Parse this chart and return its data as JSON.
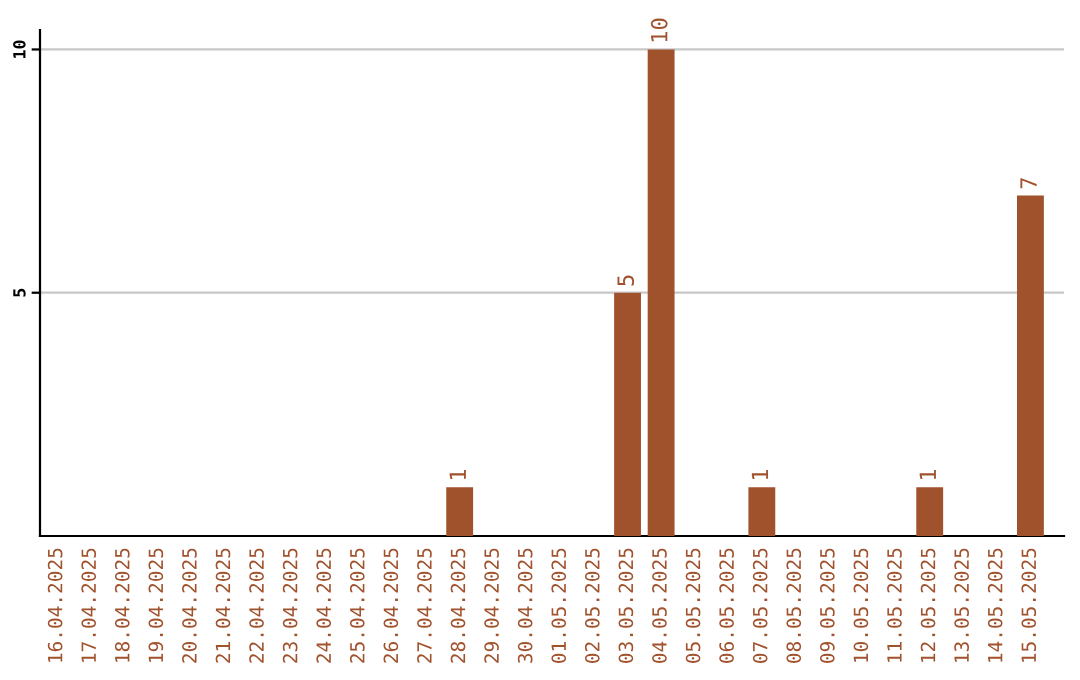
{
  "chart_data": {
    "type": "bar",
    "categories": [
      "16.04.2025",
      "17.04.2025",
      "18.04.2025",
      "19.04.2025",
      "20.04.2025",
      "21.04.2025",
      "22.04.2025",
      "23.04.2025",
      "24.04.2025",
      "25.04.2025",
      "26.04.2025",
      "27.04.2025",
      "28.04.2025",
      "29.04.2025",
      "30.04.2025",
      "01.05.2025",
      "02.05.2025",
      "03.05.2025",
      "04.05.2025",
      "05.05.2025",
      "06.05.2025",
      "07.05.2025",
      "08.05.2025",
      "09.05.2025",
      "10.05.2025",
      "11.05.2025",
      "12.05.2025",
      "13.05.2025",
      "14.05.2025",
      "15.05.2025"
    ],
    "values": [
      0,
      0,
      0,
      0,
      0,
      0,
      0,
      0,
      0,
      0,
      0,
      0,
      1,
      0,
      0,
      0,
      0,
      5,
      10,
      0,
      0,
      1,
      0,
      0,
      0,
      0,
      1,
      0,
      0,
      7
    ],
    "value_labels": [
      null,
      null,
      null,
      null,
      null,
      null,
      null,
      null,
      null,
      null,
      null,
      null,
      "1",
      null,
      null,
      null,
      null,
      "5",
      "10",
      null,
      null,
      "1",
      null,
      null,
      null,
      null,
      "1",
      null,
      null,
      "7"
    ],
    "color": "#a0522d",
    "ylim": [
      0,
      10.4
    ],
    "yticks": [
      5,
      10
    ],
    "grid": "y"
  }
}
